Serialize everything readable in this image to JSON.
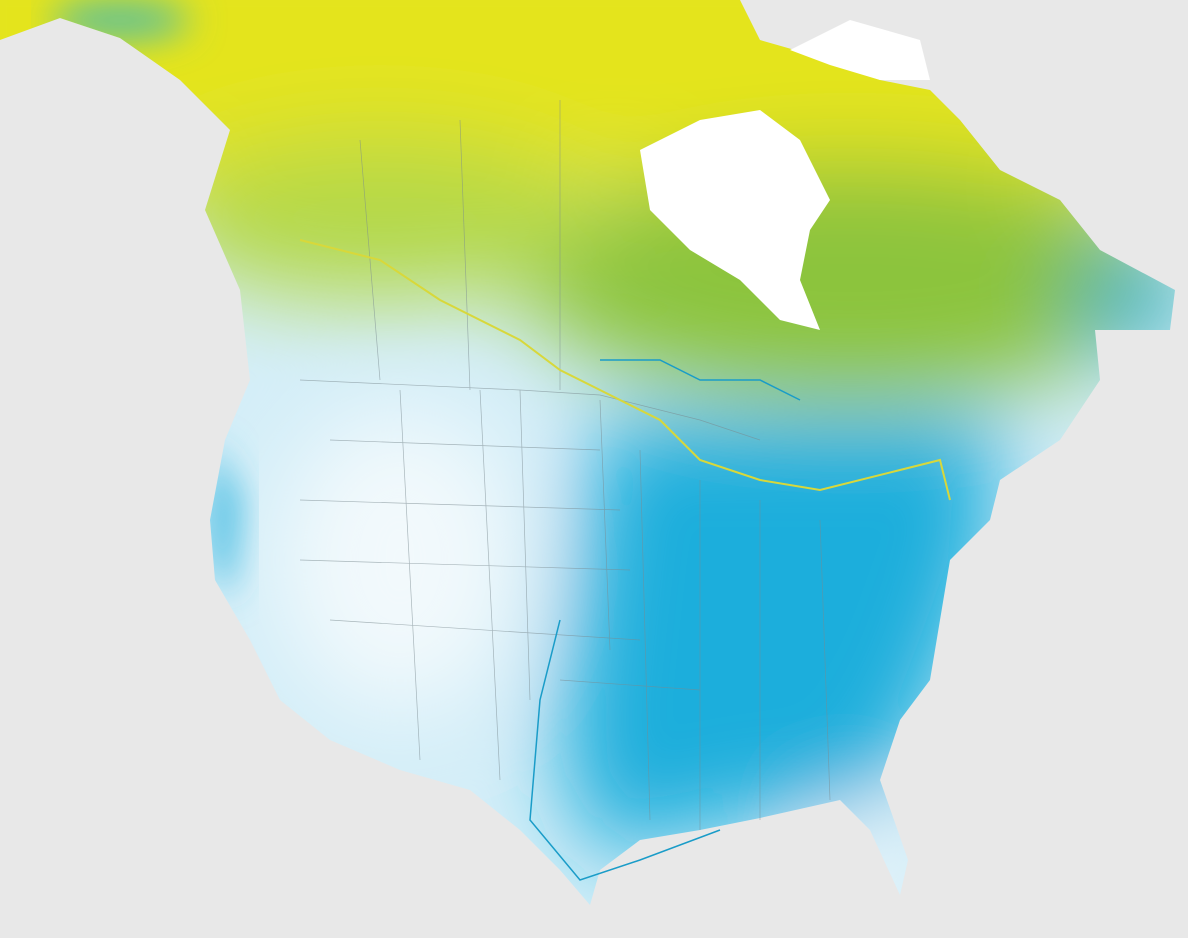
{
  "map": {
    "colors": {
      "background": "#e8e8e8",
      "north_yellow": "#e4e41c",
      "mid_green": "#8cc43c",
      "west_light": "#d4eef8",
      "west_white": "#f2f9fc",
      "east_blue": "#1eaedc",
      "water": "#ffffff",
      "contour_yellow": "#d8d83a",
      "contour_blue": "#1a9cc8",
      "border_lines": "#7a8a90"
    }
  }
}
